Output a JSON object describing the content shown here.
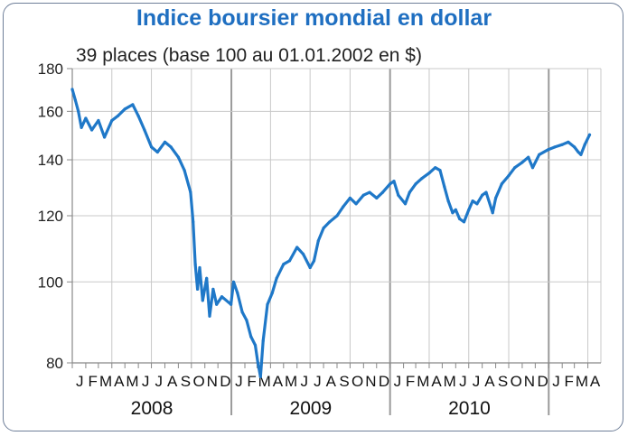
{
  "title": "Indice boursier mondial en dollar",
  "subtitle": "39 places (base 100 au 01.01.2002 en $)",
  "colors": {
    "title": "#1f6fc1",
    "series": "#1f78c8",
    "grid": "#c8c8c8",
    "axis": "#888888"
  },
  "chart_data": {
    "type": "line",
    "title": "Indice boursier mondial en dollar",
    "subtitle": "39 places (base 100 au 01.01.2002 en $)",
    "xlabel": "",
    "ylabel": "",
    "y_scale": "log",
    "ylim": [
      80,
      180
    ],
    "yticks": [
      80,
      100,
      120,
      140,
      160,
      180
    ],
    "grid": true,
    "legend": "none",
    "month_ticks": [
      "J",
      "F",
      "M",
      "A",
      "M",
      "J",
      "J",
      "A",
      "S",
      "O",
      "N",
      "D",
      "J",
      "F",
      "M",
      "A",
      "M",
      "J",
      "J",
      "A",
      "S",
      "O",
      "N",
      "D",
      "J",
      "F",
      "M",
      "A",
      "M",
      "J",
      "J",
      "A",
      "S",
      "O",
      "N",
      "D",
      "J",
      "F",
      "M",
      "A"
    ],
    "years": [
      "2008",
      "2009",
      "2010"
    ],
    "series": [
      {
        "x": [
          "2008-01-01",
          "2008-01-08",
          "2008-01-15",
          "2008-01-22",
          "2008-02-01",
          "2008-02-15",
          "2008-03-01",
          "2008-03-15",
          "2008-04-01",
          "2008-04-15",
          "2008-05-01",
          "2008-05-19",
          "2008-06-01",
          "2008-06-15",
          "2008-07-01",
          "2008-07-15",
          "2008-08-01",
          "2008-08-15",
          "2008-09-01",
          "2008-09-15",
          "2008-09-29",
          "2008-10-05",
          "2008-10-10",
          "2008-10-15",
          "2008-10-20",
          "2008-10-27",
          "2008-11-05",
          "2008-11-12",
          "2008-11-20",
          "2008-11-28",
          "2008-12-10",
          "2008-12-31",
          "2009-01-06",
          "2009-01-15",
          "2009-01-26",
          "2009-02-05",
          "2009-02-15",
          "2009-02-25",
          "2009-03-03",
          "2009-03-09",
          "2009-03-15",
          "2009-03-25",
          "2009-04-05",
          "2009-04-15",
          "2009-05-01",
          "2009-05-15",
          "2009-06-01",
          "2009-06-15",
          "2009-07-01",
          "2009-07-10",
          "2009-07-20",
          "2009-08-01",
          "2009-08-15",
          "2009-09-01",
          "2009-09-15",
          "2009-10-01",
          "2009-10-15",
          "2009-11-01",
          "2009-11-15",
          "2009-12-01",
          "2009-12-15",
          "2010-01-01",
          "2010-01-10",
          "2010-01-20",
          "2010-02-05",
          "2010-02-15",
          "2010-03-01",
          "2010-03-15",
          "2010-04-01",
          "2010-04-15",
          "2010-04-26",
          "2010-05-06",
          "2010-05-15",
          "2010-05-25",
          "2010-06-01",
          "2010-06-10",
          "2010-06-20",
          "2010-07-01",
          "2010-07-10",
          "2010-07-20",
          "2010-08-01",
          "2010-08-10",
          "2010-08-25",
          "2010-09-01",
          "2010-09-15",
          "2010-10-01",
          "2010-10-15",
          "2010-11-01",
          "2010-11-15",
          "2010-11-25",
          "2010-12-10",
          "2010-12-31",
          "2011-01-15",
          "2011-02-01",
          "2011-02-15",
          "2011-03-01",
          "2011-03-10",
          "2011-03-16",
          "2011-03-25",
          "2011-04-05"
        ],
        "values": [
          170,
          165,
          160,
          153,
          157,
          152,
          156,
          149,
          156,
          158,
          161,
          163,
          158,
          152,
          145,
          143,
          147,
          145,
          141,
          136,
          128,
          118,
          105,
          98,
          104,
          95,
          101,
          91,
          98,
          94,
          96,
          94,
          100,
          97,
          92,
          90,
          86,
          84,
          80,
          77,
          85,
          94,
          97,
          101,
          105,
          106,
          110,
          108,
          104,
          106,
          112,
          116,
          118,
          120,
          123,
          126,
          124,
          127,
          128,
          126,
          128,
          131,
          132,
          127,
          124,
          128,
          131,
          133,
          135,
          137,
          136,
          130,
          125,
          121,
          122,
          119,
          118,
          122,
          125,
          124,
          127,
          128,
          121,
          126,
          131,
          134,
          137,
          139,
          141,
          137,
          142,
          144,
          145,
          146,
          147,
          145,
          143,
          142,
          146,
          150
        ]
      }
    ]
  }
}
